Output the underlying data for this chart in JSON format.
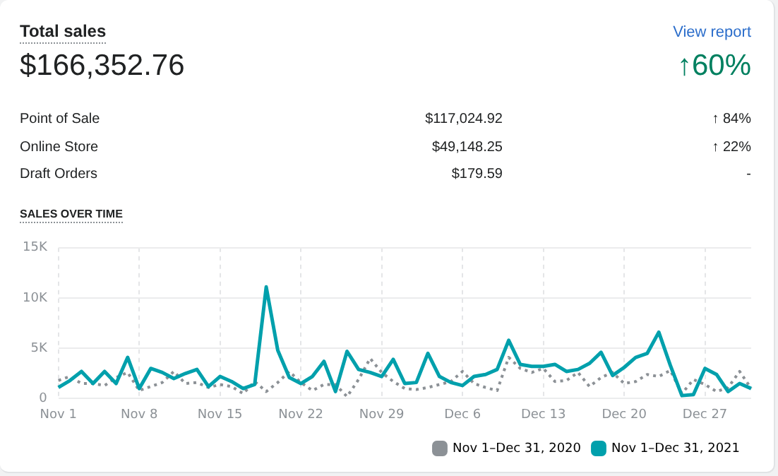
{
  "chart_data": [
    {
      "type": "other",
      "title": "Total sales",
      "annotations": [
        "$166,352.76",
        "↑60%",
        "View report",
        "Point of Sale",
        "$117,024.92",
        "↑ 84%",
        "Online Store",
        "$49,148.25",
        "↑ 22%",
        "Draft Orders",
        "$179.59",
        "-"
      ]
    },
    {
      "type": "line",
      "title": "SALES OVER TIME",
      "categories": [
        "Nov 1",
        null,
        null,
        null,
        null,
        null,
        null,
        "Nov 8",
        null,
        null,
        null,
        null,
        null,
        null,
        "Nov 15",
        null,
        null,
        null,
        null,
        null,
        null,
        "Nov 22",
        null,
        null,
        null,
        null,
        null,
        null,
        "Nov 29",
        null,
        null,
        null,
        null,
        null,
        null,
        "Dec 6",
        null,
        null,
        null,
        null,
        null,
        null,
        "Dec 13",
        null,
        null,
        null,
        null,
        null,
        null,
        "Dec 20",
        null,
        null,
        null,
        null,
        null,
        null,
        "Dec 27",
        null,
        null,
        null,
        null
      ],
      "series": [
        {
          "name": "Nov 1–Dec 31, 2020",
          "color": "#8c9196",
          "line_style": "dotted",
          "values": [
            1800,
            2200,
            1500,
            1500,
            1300,
            2100,
            2600,
            800,
            1200,
            1600,
            2700,
            1500,
            1600,
            1100,
            1400,
            1200,
            500,
            1700,
            700,
            1600,
            2700,
            1600,
            800,
            1400,
            1400,
            200,
            1900,
            4000,
            2600,
            1700,
            1000,
            900,
            1100,
            1400,
            1700,
            2700,
            1500,
            1100,
            800,
            4100,
            3000,
            2600,
            3000,
            1700,
            1800,
            2600,
            1200,
            2100,
            2600,
            1500,
            1700,
            2400,
            2200,
            2800,
            500,
            1900,
            1400,
            700,
            1100,
            2700,
            1000
          ]
        },
        {
          "name": "Nov 1–Dec 31, 2021",
          "color": "#00a0ac",
          "line_style": "solid",
          "values": [
            1100,
            1800,
            2700,
            1500,
            2700,
            1500,
            4100,
            1000,
            3000,
            2600,
            2000,
            2500,
            2900,
            1200,
            2200,
            1700,
            1000,
            1400,
            11100,
            4800,
            2100,
            1500,
            2200,
            3700,
            700,
            4700,
            2900,
            2600,
            2200,
            3900,
            1500,
            1600,
            4500,
            2200,
            1600,
            1300,
            2200,
            2400,
            2900,
            5800,
            3400,
            3200,
            3200,
            3400,
            2700,
            2900,
            3500,
            4600,
            2300,
            3100,
            4100,
            4500,
            6600,
            3300,
            300,
            400,
            3000,
            2400,
            700,
            1500,
            1000
          ]
        }
      ],
      "ylim": [
        0,
        15000
      ],
      "yticks": [
        {
          "value": 0,
          "label": "0"
        },
        {
          "value": 5000,
          "label": "5K"
        },
        {
          "value": 10000,
          "label": "10K"
        },
        {
          "value": 15000,
          "label": "15K"
        }
      ],
      "grid": true,
      "legend": "bottom right",
      "marker": "none"
    }
  ]
}
